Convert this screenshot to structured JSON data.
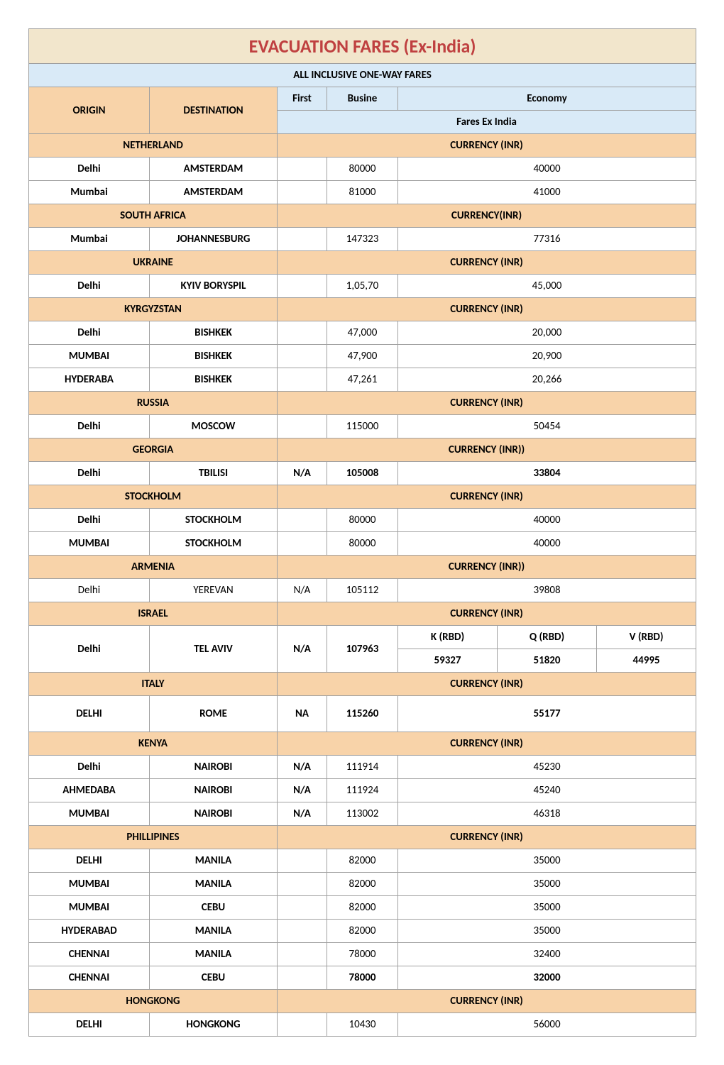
{
  "title": "EVACUATION FARES (Ex-India)",
  "subtitle": "ALL INCLUSIVE ONE-WAY FARES",
  "headers": {
    "origin": "ORIGIN",
    "destination": "DESTINATION",
    "first": "First",
    "busine": "Busine",
    "economy": "Economy",
    "fares_ex_india": "Fares Ex India"
  },
  "sections": [
    {
      "country": "NETHERLAND",
      "currency": "CURRENCY (INR)",
      "rows": [
        {
          "origin": "Delhi",
          "dest": "AMSTERDAM",
          "first": "",
          "busi": "80000",
          "econ": "40000",
          "bold": true
        },
        {
          "origin": "Mumbai",
          "dest": "AMSTERDAM",
          "first": "",
          "busi": "81000",
          "econ": "41000",
          "bold": true
        }
      ]
    },
    {
      "country": "SOUTH AFRICA",
      "currency": "CURRENCY(INR)",
      "rows": [
        {
          "origin": "Mumbai",
          "dest": "JOHANNESBURG",
          "first": "",
          "busi": "147323",
          "econ": "77316",
          "bold": true
        }
      ]
    },
    {
      "country": "UKRAINE",
      "currency": "CURRENCY (INR)",
      "rows": [
        {
          "origin": "Delhi",
          "dest": "KYIV BORYSPIL",
          "first": "",
          "busi": "1,05,70",
          "econ": "45,000",
          "bold": true
        }
      ]
    },
    {
      "country": "KYRGYZSTAN",
      "currency": "CURRENCY (INR)",
      "rows": [
        {
          "origin": "Delhi",
          "dest": "BISHKEK",
          "first": "",
          "busi": "47,000",
          "econ": "20,000",
          "bold": true
        },
        {
          "origin": "MUMBAI",
          "dest": "BISHKEK",
          "first": "",
          "busi": "47,900",
          "econ": "20,900",
          "bold": true
        },
        {
          "origin": "HYDERABA",
          "dest": "BISHKEK",
          "first": "",
          "busi": "47,261",
          "econ": "20,266",
          "bold": true
        }
      ]
    },
    {
      "country": "RUSSIA",
      "currency": "CURRENCY (INR)",
      "rows": [
        {
          "origin": "Delhi",
          "dest": "MOSCOW",
          "first": "",
          "busi": "115000",
          "econ": "50454",
          "bold": true
        }
      ]
    },
    {
      "country": "GEORGIA",
      "currency": "CURRENCY (INR))",
      "rows": [
        {
          "origin": "Delhi",
          "dest": "TBILISI",
          "first": "N/A",
          "busi": "105008",
          "econ": "33804",
          "bold": true
        }
      ]
    },
    {
      "country": "STOCKHOLM",
      "currency": "CURRENCY (INR)",
      "rows": [
        {
          "origin": "Delhi",
          "dest": "STOCKHOLM",
          "first": "",
          "busi": "80000",
          "econ": "40000",
          "bold": true
        },
        {
          "origin": "MUMBAI",
          "dest": "STOCKHOLM",
          "first": "",
          "busi": "80000",
          "econ": "40000",
          "bold": true
        }
      ]
    },
    {
      "country": "ARMENIA",
      "currency": "CURRENCY (INR))",
      "rows": [
        {
          "origin": "Delhi",
          "dest": "YEREVAN",
          "first": "N/A",
          "busi": "105112",
          "econ": "39808",
          "bold": false
        }
      ]
    },
    {
      "country": "ISRAEL",
      "currency": "CURRENCY (INR)",
      "israel": true,
      "rows": [
        {
          "origin": "Delhi",
          "dest": "TEL AVIV",
          "first": "N/A",
          "busi": "107963",
          "k_h": "K (RBD)",
          "q_h": "Q (RBD)",
          "v_h": "V (RBD)",
          "k": "59327",
          "q": "51820",
          "v": "44995",
          "bold": true
        }
      ]
    },
    {
      "country": "ITALY",
      "currency": "CURRENCY (INR)",
      "rows": [
        {
          "origin": "DELHI",
          "dest": "ROME",
          "first": "NA",
          "busi": "115260",
          "econ": "55177",
          "bold": true,
          "tall": true
        }
      ]
    },
    {
      "country": "KENYA",
      "currency": "CURRENCY (INR)",
      "rows": [
        {
          "origin": "Delhi",
          "dest": "NAIROBI",
          "first": "N/A",
          "busi": "111914",
          "econ": "45230",
          "bold": true
        },
        {
          "origin": "AHMEDABA",
          "dest": "NAIROBI",
          "first": "N/A",
          "busi": "111924",
          "econ": "45240",
          "bold": true
        },
        {
          "origin": "MUMBAI",
          "dest": "NAIROBI",
          "first": "N/A",
          "busi": "113002",
          "econ": "46318",
          "bold": true
        }
      ]
    },
    {
      "country": "PHILLIPINES",
      "currency": "CURRENCY (INR)",
      "rows": [
        {
          "origin": "DELHI",
          "dest": "MANILA",
          "first": "",
          "busi": "82000",
          "econ": "35000",
          "bold": true
        },
        {
          "origin": "MUMBAI",
          "dest": "MANILA",
          "first": "",
          "busi": "82000",
          "econ": "35000",
          "bold": true
        },
        {
          "origin": "MUMBAI",
          "dest": "CEBU",
          "first": "",
          "busi": "82000",
          "econ": "35000",
          "bold": true
        },
        {
          "origin": "HYDERABAD",
          "dest": "MANILA",
          "first": "",
          "busi": "82000",
          "econ": "35000",
          "bold": true
        },
        {
          "origin": "CHENNAI",
          "dest": "MANILA",
          "first": "",
          "busi": "78000",
          "econ": "32400",
          "bold": true
        },
        {
          "origin": "CHENNAI",
          "dest": "CEBU",
          "first": "",
          "busi": "78000",
          "econ": "32000",
          "bold": true
        }
      ]
    },
    {
      "country": "HONGKONG",
      "currency": "CURRENCY (INR)",
      "rows": [
        {
          "origin": "DELHI",
          "dest": "HONGKONG",
          "first": "",
          "busi": "10430",
          "econ": "56000",
          "bold": true
        }
      ]
    }
  ],
  "style": {
    "title_bg": "#f2e6cc",
    "title_color": "#bf4040",
    "blue_bg": "#d9eaf7",
    "origin_bg": "#f8d3a9",
    "country_bg": "#f8d3a9",
    "border_color": "#a0a0a0",
    "font_family": "Calibri, Arial, sans-serif"
  }
}
